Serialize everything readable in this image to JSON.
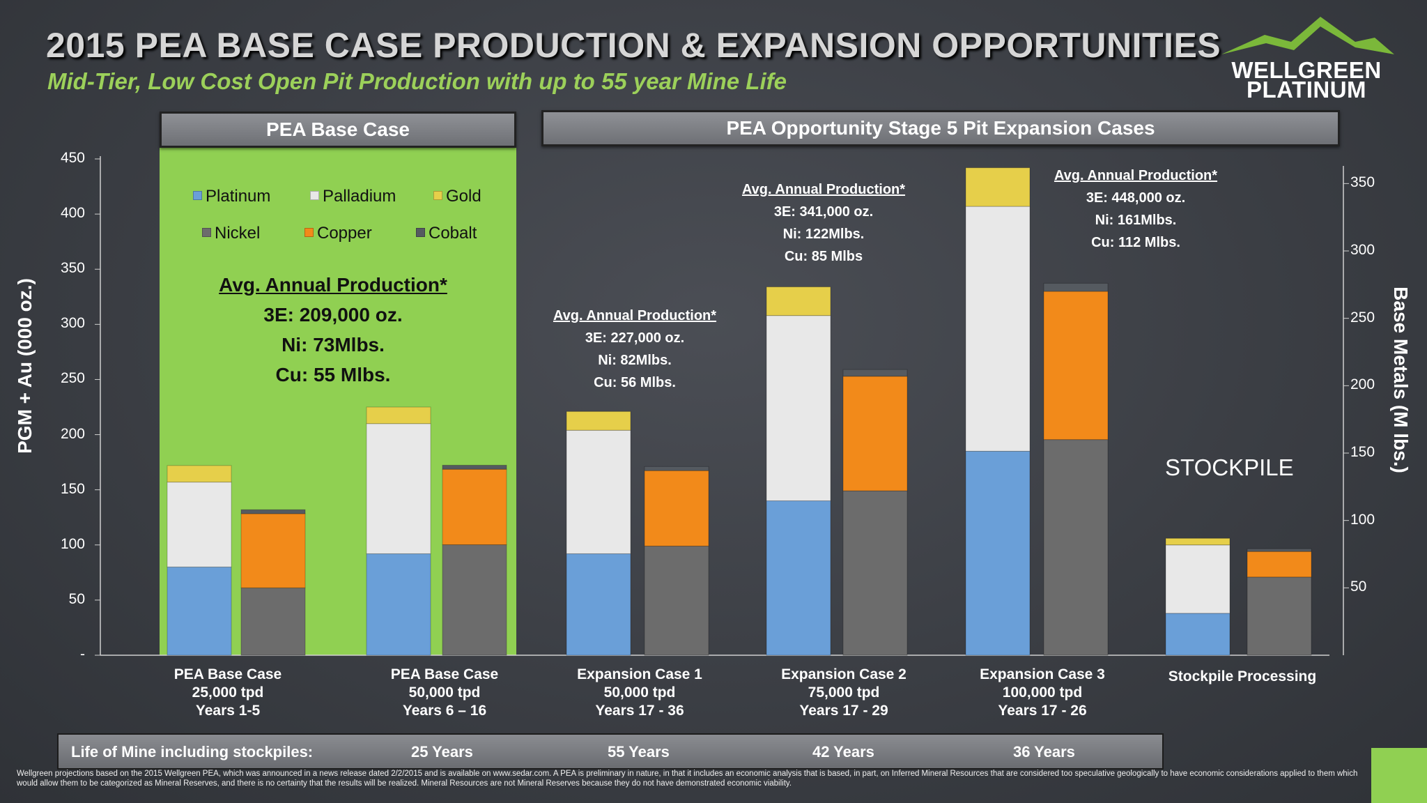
{
  "title": "2015 PEA BASE CASE PRODUCTION & EXPANSION OPPORTUNITIES",
  "subtitle": "Mid-Tier, Low Cost Open Pit Production with up to 55 year Mine Life",
  "logo": {
    "line1": "WELLGREEN",
    "line2": "PLATINUM",
    "icon": "mountain-icon"
  },
  "headers": {
    "base": "PEA Base Case",
    "expansion": "PEA Opportunity Stage 5 Pit Expansion Cases"
  },
  "stockpile_label": "STOCKPILE",
  "colors": {
    "platinum": "#6a9fd8",
    "palladium": "#e8e8e8",
    "gold": "#e6cf4a",
    "nickel": "#6c6c6c",
    "copper": "#f28a1a",
    "cobalt": "#555a60",
    "panel_green": "#90d052"
  },
  "legend": [
    {
      "name": "Platinum",
      "color": "#6a9fd8"
    },
    {
      "name": "Palladium",
      "color": "#e8e8e8"
    },
    {
      "name": "Gold",
      "color": "#e6cf4a"
    },
    {
      "name": "Nickel",
      "color": "#6c6c6c"
    },
    {
      "name": "Copper",
      "color": "#f28a1a"
    },
    {
      "name": "Cobalt",
      "color": "#555a60"
    }
  ],
  "annotations": [
    {
      "head": "Avg. Annual Production*",
      "l1": "3E: 209,000 oz.",
      "l2": "Ni: 73Mlbs.",
      "l3": "Cu: 55 Mlbs."
    },
    {
      "head": "Avg. Annual Production*",
      "l1": "3E: 227,000 oz.",
      "l2": "Ni: 82Mlbs.",
      "l3": "Cu: 56 Mlbs."
    },
    {
      "head": "Avg. Annual Production*",
      "l1": "3E: 341,000 oz.",
      "l2": "Ni: 122Mlbs.",
      "l3": "Cu: 85 Mlbs"
    },
    {
      "head": "Avg. Annual Production*",
      "l1": "3E: 448,000 oz.",
      "l2": "Ni: 161Mlbs.",
      "l3": "Cu: 112 Mlbs."
    }
  ],
  "categories": [
    {
      "l1": "PEA Base Case",
      "l2": "25,000 tpd",
      "l3": "Years 1-5"
    },
    {
      "l1": "PEA Base Case",
      "l2": "50,000 tpd",
      "l3": "Years 6 – 16"
    },
    {
      "l1": "Expansion Case 1",
      "l2": "50,000 tpd",
      "l3": "Years 17 - 36"
    },
    {
      "l1": "Expansion Case 2",
      "l2": "75,000 tpd",
      "l3": "Years 17 - 29"
    },
    {
      "l1": "Expansion Case 3",
      "l2": "100,000 tpd",
      "l3": "Years 17 - 26"
    },
    {
      "l1": "Stockpile Processing",
      "l2": "",
      "l3": ""
    }
  ],
  "life_of_mine": {
    "label": "Life of Mine including stockpiles:",
    "values": [
      "25 Years",
      "55 Years",
      "42 Years",
      "36 Years"
    ]
  },
  "footnote": "Wellgreen projections based on the 2015 Wellgreen PEA, which was announced in a news release dated 2/2/2015 and is available on www.sedar.com. A PEA is preliminary in nature, in that it includes an economic analysis that is based, in part, on Inferred Mineral Resources that are considered too speculative geologically to have economic considerations applied to them which would allow them to be categorized as Mineral Reserves, and there is no certainty that the results will be realized. Mineral Resources are not Mineral Reserves because they do not have demonstrated economic viability.",
  "chart_data": {
    "type": "bar",
    "stacked": true,
    "categories": [
      "PEA Base Case 25,000 tpd Years 1-5",
      "PEA Base Case 50,000 tpd Years 6 – 16",
      "Expansion Case 1 50,000 tpd Years 17 - 36",
      "Expansion Case 2 75,000 tpd Years 17 - 29",
      "Expansion Case 3 100,000 tpd Years 17 - 26",
      "Stockpile Processing"
    ],
    "ylabel": "PGM + Au  (000 oz.)",
    "ylim": [
      0,
      450
    ],
    "yticks": [
      "-",
      "50",
      "100",
      "150",
      "200",
      "250",
      "300",
      "350",
      "400",
      "450"
    ],
    "y2label": "Base Metals  (M lbs.)",
    "y2lim": [
      0,
      360
    ],
    "y2ticks": [
      "50",
      "100",
      "150",
      "200",
      "250",
      "300",
      "350"
    ],
    "pgm_series": [
      {
        "name": "Platinum",
        "values": [
          80,
          92,
          92,
          140,
          185,
          38
        ]
      },
      {
        "name": "Palladium",
        "values": [
          77,
          118,
          112,
          168,
          222,
          62
        ]
      },
      {
        "name": "Gold",
        "values": [
          15,
          15,
          17,
          26,
          35,
          6
        ]
      }
    ],
    "base_metal_series": [
      {
        "name": "Nickel",
        "values": [
          50,
          82,
          81,
          122,
          160,
          58
        ]
      },
      {
        "name": "Copper",
        "values": [
          55,
          56,
          56,
          85,
          110,
          19
        ]
      },
      {
        "name": "Cobalt",
        "values": [
          3,
          3,
          3,
          5,
          6,
          2
        ]
      }
    ]
  }
}
